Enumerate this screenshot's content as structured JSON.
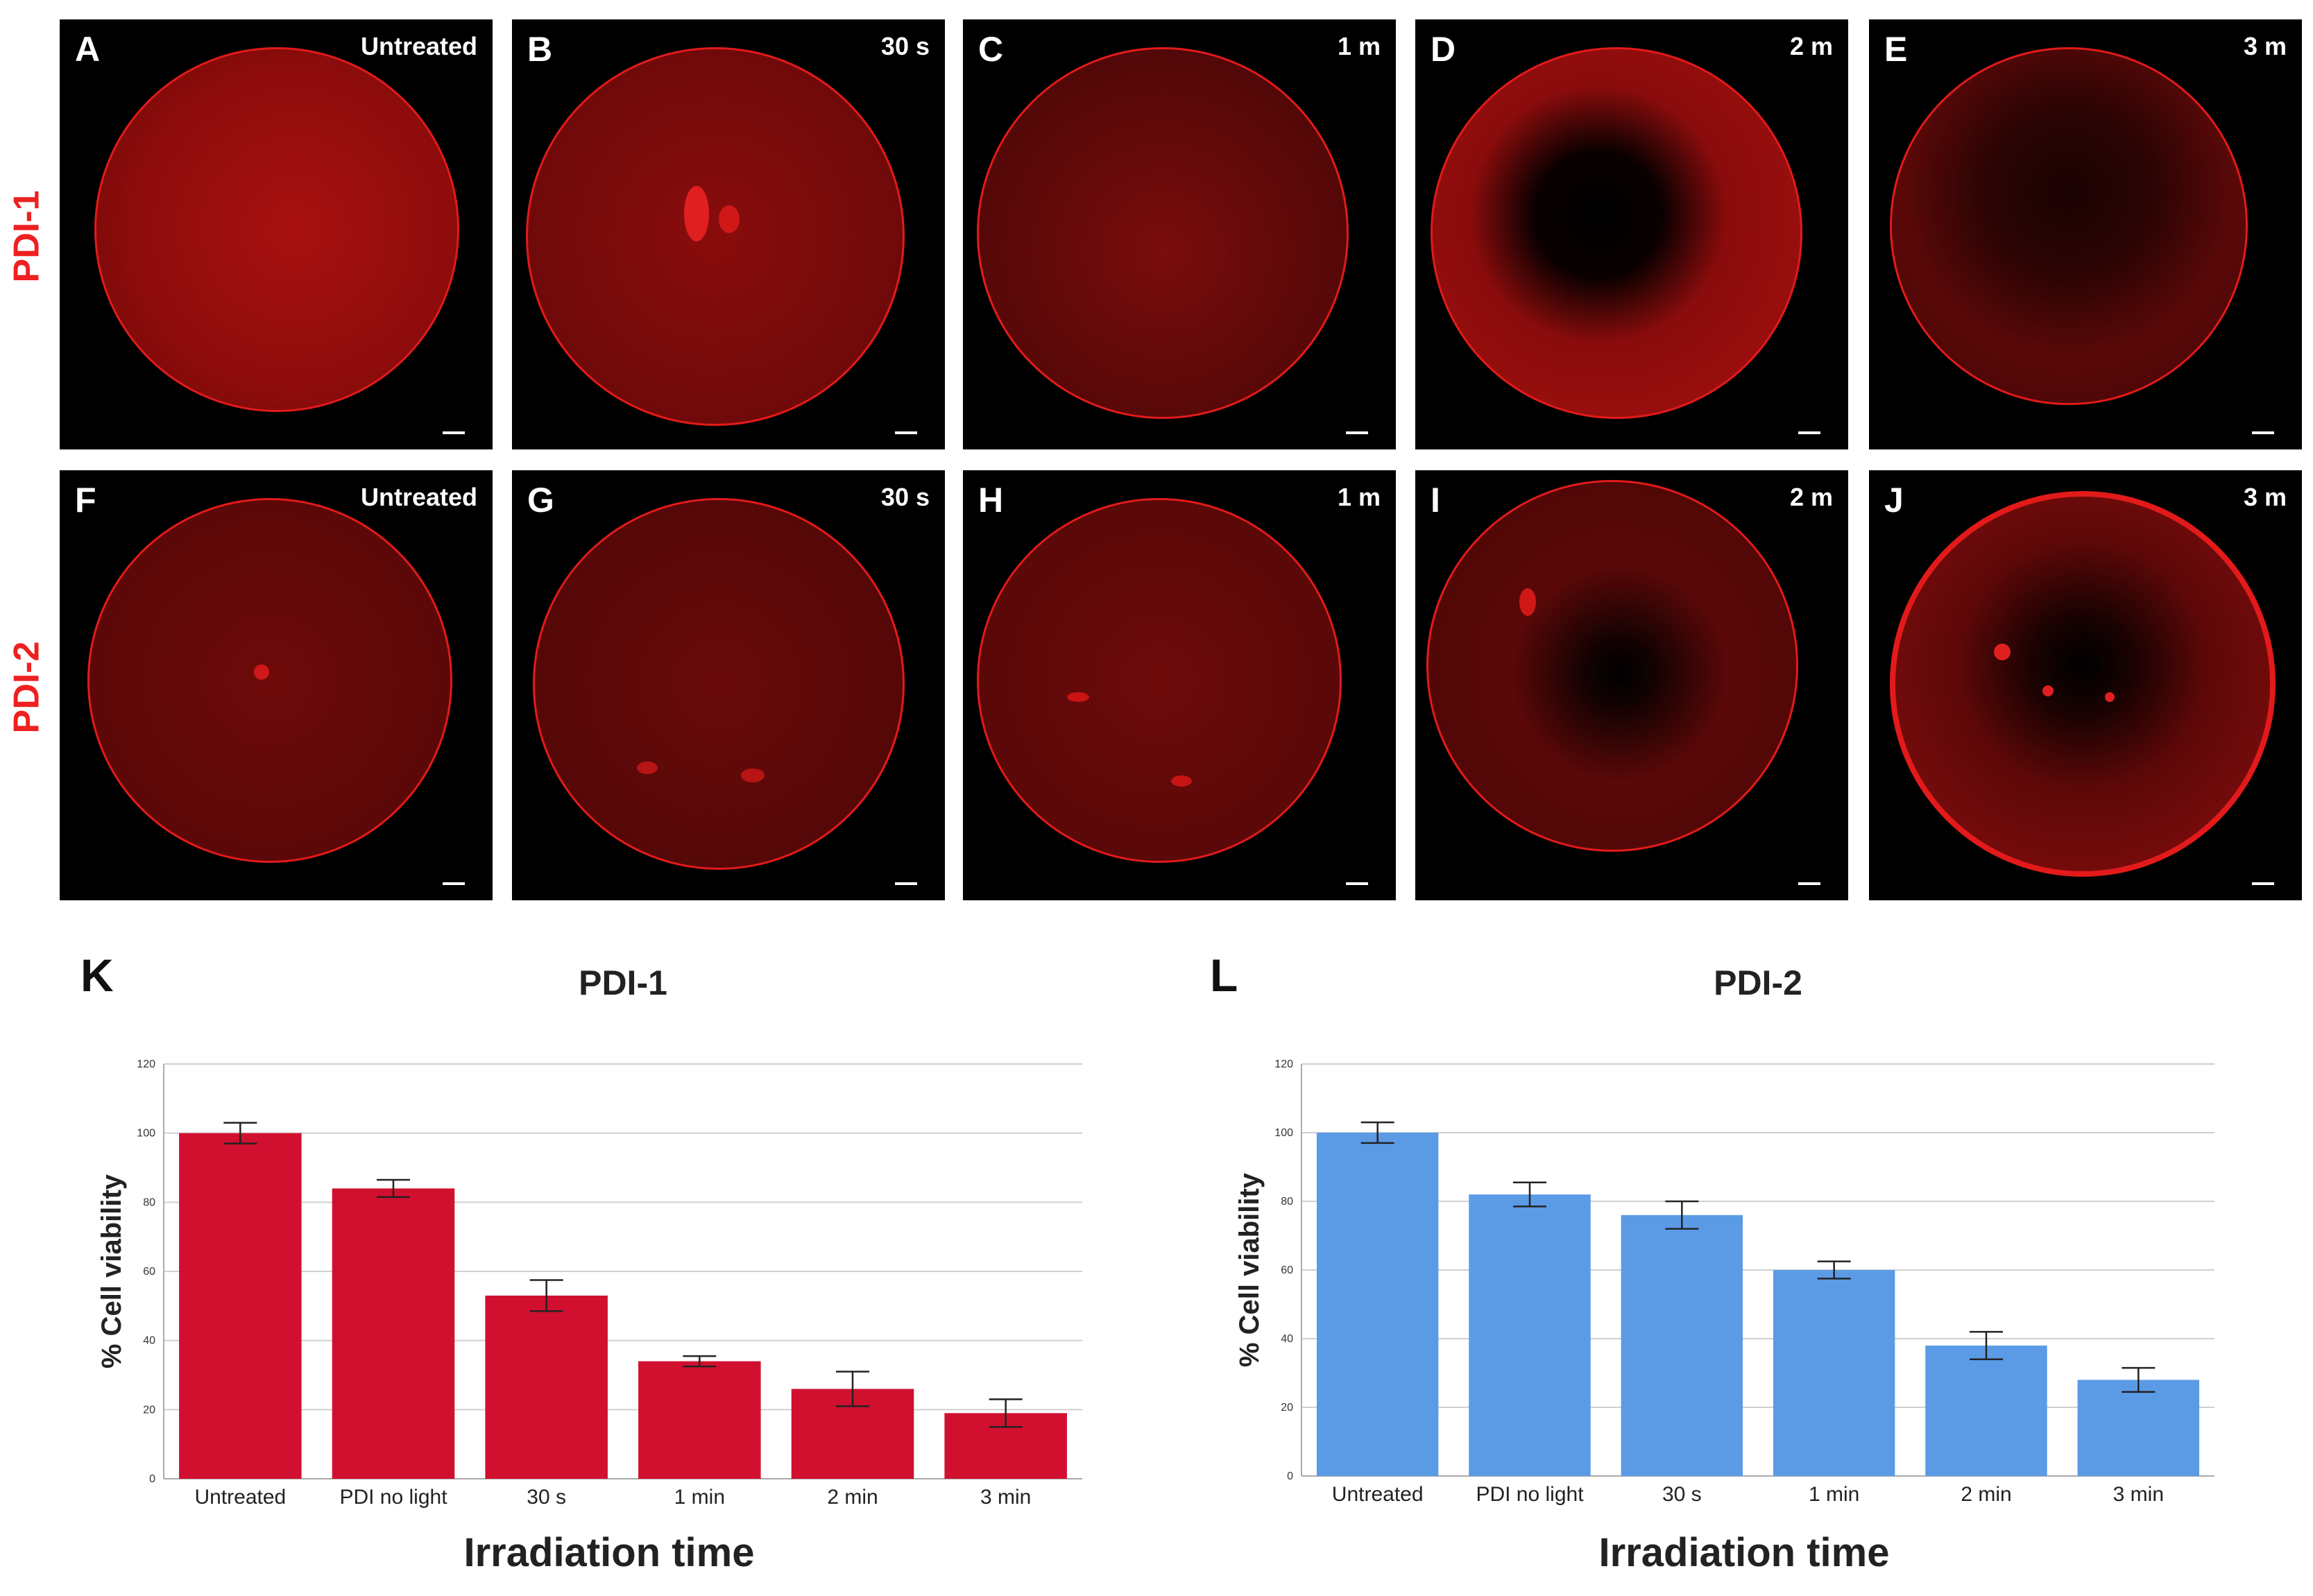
{
  "row_labels": {
    "row1": "PDI-1",
    "row2": "PDI-2"
  },
  "panels_row1": [
    {
      "letter": "A",
      "condition": "Untreated"
    },
    {
      "letter": "B",
      "condition": "30 s"
    },
    {
      "letter": "C",
      "condition": "1 m"
    },
    {
      "letter": "D",
      "condition": "2 m"
    },
    {
      "letter": "E",
      "condition": "3 m"
    }
  ],
  "panels_row2": [
    {
      "letter": "F",
      "condition": "Untreated"
    },
    {
      "letter": "G",
      "condition": "30 s"
    },
    {
      "letter": "H",
      "condition": "1 m"
    },
    {
      "letter": "I",
      "condition": "2 m"
    },
    {
      "letter": "J",
      "condition": "3 m"
    }
  ],
  "colors": {
    "fluorescence": "#c81010",
    "ring": "#e31a1a",
    "bar_pdi1": "#d1102f",
    "bar_pdi2": "#5b9be6",
    "row_label": "#ee2020"
  },
  "chart_data": [
    {
      "type": "bar",
      "panel_letter": "K",
      "title": "PDI-1",
      "xlabel": "Irradiation time",
      "ylabel": "% Cell viability",
      "categories": [
        "Untreated",
        "PDI  no light",
        "30 s",
        "1 min",
        "2 min",
        "3 min"
      ],
      "values": [
        100,
        84,
        53,
        34,
        26,
        19
      ],
      "errors": [
        3,
        2.5,
        4.5,
        1.5,
        5,
        4
      ],
      "ylim": [
        0,
        120
      ],
      "yticks": [
        0,
        20,
        40,
        60,
        80,
        100,
        120
      ],
      "grid": true,
      "color": "#d1102f"
    },
    {
      "type": "bar",
      "panel_letter": "L",
      "title": "PDI-2",
      "xlabel": "Irradiation time",
      "ylabel": "% Cell viability",
      "categories": [
        "Untreated",
        "PDI no light",
        "30 s",
        "1 min",
        "2 min",
        "3 min"
      ],
      "values": [
        100,
        82,
        76,
        60,
        38,
        28
      ],
      "errors": [
        3,
        3.5,
        4,
        2.5,
        4,
        3.5
      ],
      "ylim": [
        0,
        120
      ],
      "yticks": [
        0,
        20,
        40,
        60,
        80,
        100,
        120
      ],
      "grid": true,
      "color": "#5b9be6"
    }
  ]
}
